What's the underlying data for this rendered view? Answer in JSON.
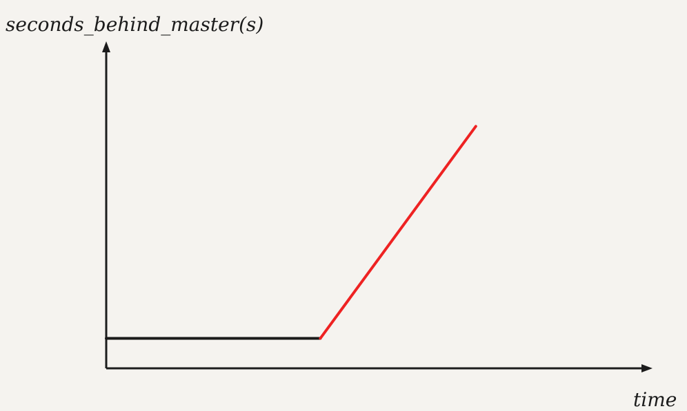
{
  "chart_data": {
    "type": "line",
    "title": "",
    "ylabel": "seconds_behind_master(s)",
    "xlabel": "time",
    "grid": false,
    "legend": "none",
    "xlim": [
      0,
      10
    ],
    "ylim": [
      0,
      10
    ],
    "series": [
      {
        "segment": "baseline",
        "color": "#1a1a1a",
        "x": [
          0,
          4.27
        ],
        "y": [
          1.0,
          1.0
        ]
      },
      {
        "segment": "rising",
        "color": "#ee2222",
        "x": [
          4.27,
          7.37
        ],
        "y": [
          1.0,
          8.08
        ]
      }
    ]
  }
}
